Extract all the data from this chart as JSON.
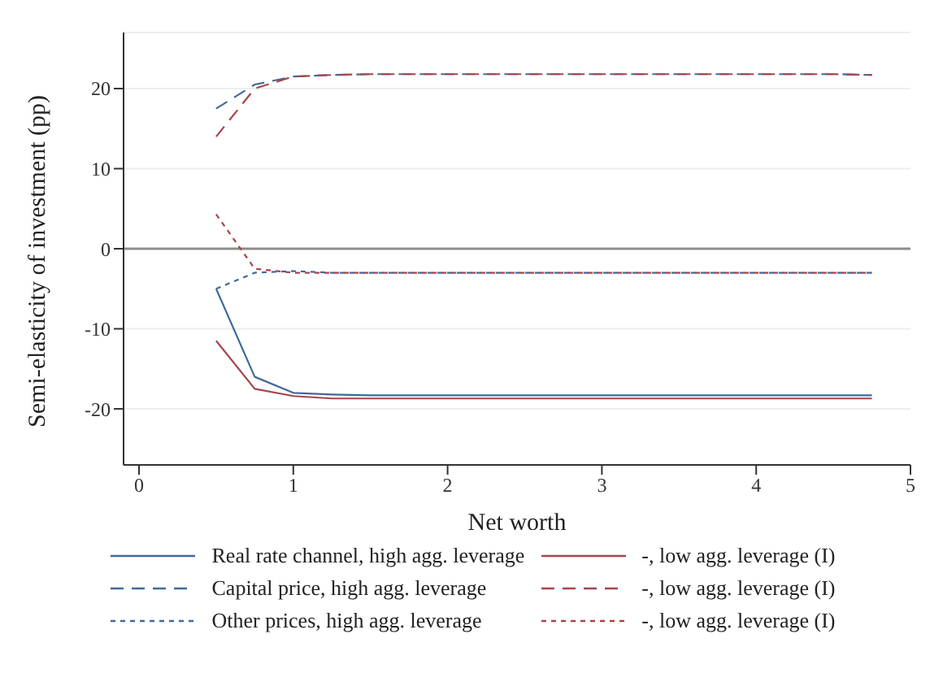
{
  "chart_data": {
    "type": "line",
    "xlabel": "Net worth",
    "ylabel": "Semi-elasticity of investment (pp)",
    "x": [
      0.5,
      0.75,
      1,
      1.25,
      1.5,
      1.75,
      2,
      2.25,
      2.5,
      2.75,
      3,
      3.25,
      3.5,
      3.75,
      4,
      4.25,
      4.5,
      4.75
    ],
    "series": [
      {
        "name": "Real rate channel, high agg. leverage",
        "color": "#3f6a9a",
        "line_style": "solid",
        "values": [
          -5,
          -16,
          -18,
          -18.2,
          -18.3,
          -18.3,
          -18.3,
          -18.3,
          -18.3,
          -18.3,
          -18.3,
          -18.3,
          -18.3,
          -18.3,
          -18.3,
          -18.3,
          -18.3,
          -18.3
        ]
      },
      {
        "name": "-, low agg. leverage (I)",
        "color": "#a8444c",
        "line_style": "solid",
        "values": [
          -11.5,
          -17.5,
          -18.4,
          -18.7,
          -18.7,
          -18.7,
          -18.7,
          -18.7,
          -18.7,
          -18.7,
          -18.7,
          -18.7,
          -18.7,
          -18.7,
          -18.7,
          -18.7,
          -18.7,
          -18.7
        ]
      },
      {
        "name": "Capital price, high agg. leverage",
        "color": "#3f6a9a",
        "line_style": "dashed",
        "values": [
          17.5,
          20.5,
          21.5,
          21.7,
          21.8,
          21.8,
          21.8,
          21.8,
          21.8,
          21.8,
          21.8,
          21.8,
          21.8,
          21.8,
          21.8,
          21.8,
          21.8,
          21.7
        ]
      },
      {
        "name": "-, low agg. leverage (I)",
        "color": "#a8444c",
        "line_style": "dashed",
        "values": [
          14,
          20,
          21.5,
          21.7,
          21.8,
          21.8,
          21.8,
          21.8,
          21.8,
          21.8,
          21.8,
          21.8,
          21.8,
          21.8,
          21.8,
          21.8,
          21.8,
          21.7
        ]
      },
      {
        "name": "Other prices, high agg. leverage",
        "color": "#3f6a9a",
        "line_style": "dotted",
        "values": [
          -5,
          -3,
          -2.8,
          -3,
          -3,
          -3,
          -3,
          -3,
          -3,
          -3,
          -3,
          -3,
          -3,
          -3,
          -3,
          -3,
          -3,
          -3
        ]
      },
      {
        "name": "-, low agg. leverage (I)",
        "color": "#a8444c",
        "line_style": "dotted",
        "values": [
          4.3,
          -2.5,
          -3,
          -3,
          -3,
          -3,
          -3,
          -3,
          -3,
          -3,
          -3,
          -3,
          -3,
          -3,
          -3,
          -3,
          -3,
          -3
        ]
      }
    ],
    "xlim": [
      -0.1,
      5
    ],
    "xticks": [
      0,
      1,
      2,
      3,
      4,
      5
    ],
    "ylim": [
      -27,
      27
    ],
    "yticks": [
      -20,
      -10,
      0,
      10,
      20
    ],
    "grid": "y",
    "legend": "bottom",
    "marker": "none",
    "ref_lines": [
      {
        "axis": "y",
        "value": 0,
        "color": "#8c8c8c"
      }
    ]
  }
}
